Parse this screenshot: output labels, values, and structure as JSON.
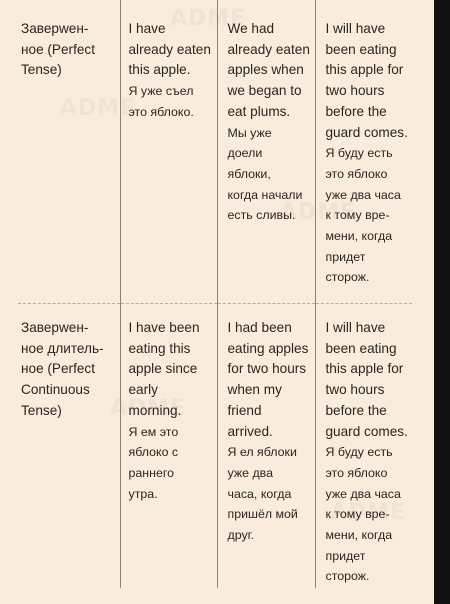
{
  "watermark": "ADME",
  "rows": [
    {
      "tense": "Заверwен-\nное (Perfect\nTense)",
      "present_en": "I have\nalready eaten\nthis apple.",
      "present_ru": "Я уже съел\nэто яблоко.",
      "past_en": "We had\nalready eaten\napples when\nwe began to\neat plums.",
      "past_ru": "Мы уже\nдоели\nяблоки,\nкогда начали\nесть сливы.",
      "future_en": "I will have\nbeen eating\nthis apple for\ntwo hours\nbefore the\nguard comes.",
      "future_ru": "Я буду есть\nэто яблоко\nуже два часа\nк тому вре-\nмени, когда\nпридет\nсторож."
    },
    {
      "tense": "Заверwен-\nное длитель-\nное (Perfect\nContinuous\nTense)",
      "present_en": "I have been\neating this\napple since\nearly\nmorning.",
      "present_ru": "Я ем это\nяблоко с\nраннего\nутра.",
      "past_en": "I had been\neating apples\nfor two hours\nwhen my\nfriend\narrived.",
      "past_ru": "Я ел яблоки\nуже два\nчаса, когда\nпришёл мой\nдруг.",
      "future_en": "I will have\nbeen eating\nthis apple for\ntwo hours\nbefore the\nguard comes.",
      "future_ru": "Я буду есть\nэто яблоко\nуже два часа\nк тому вре-\nмени, когда\nпридет\nсторож."
    }
  ]
}
